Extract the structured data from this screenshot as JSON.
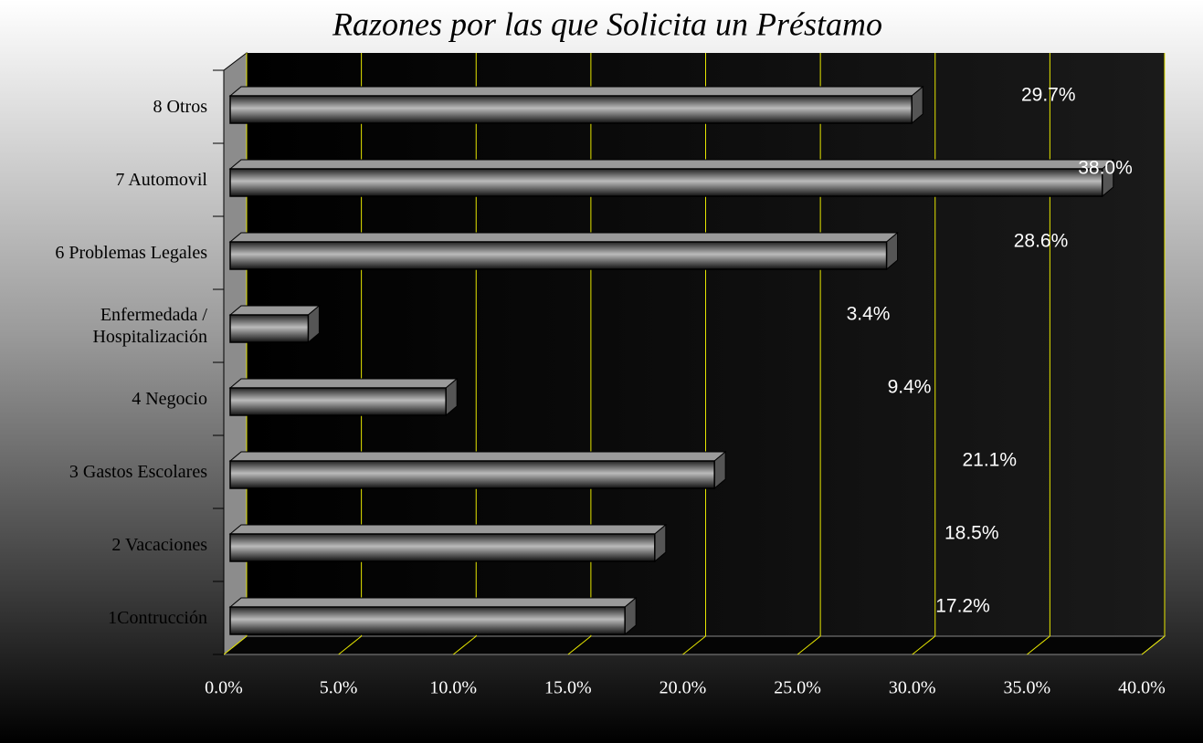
{
  "chart_data": {
    "type": "bar",
    "orientation": "horizontal",
    "title": "Razones por las que Solicita un Préstamo",
    "categories": [
      "1Contrucción",
      "2 Vacaciones",
      "3 Gastos Escolares",
      "4 Negocio",
      "Enfermedada / Hospitalización",
      "6 Problemas Legales",
      "7 Automovil",
      "8 Otros"
    ],
    "values": [
      17.2,
      18.5,
      21.1,
      9.4,
      3.4,
      28.6,
      38.0,
      29.7
    ],
    "value_labels": [
      "17.2%",
      "18.5%",
      "21.1%",
      "9.4%",
      "3.4%",
      "28.6%",
      "38.0%",
      "29.7%"
    ],
    "color": "#8a8a8a",
    "xlim": [
      0,
      40
    ],
    "xticks": [
      {
        "value": 0,
        "label": "0.0%"
      },
      {
        "value": 5,
        "label": "5.0%"
      },
      {
        "value": 10,
        "label": "10.0%"
      },
      {
        "value": 15,
        "label": "15.0%"
      },
      {
        "value": 20,
        "label": "20.0%"
      },
      {
        "value": 25,
        "label": "25.0%"
      },
      {
        "value": 30,
        "label": "30.0%"
      },
      {
        "value": 35,
        "label": "35.0%"
      },
      {
        "value": 40,
        "label": "40.0%"
      }
    ],
    "grid": true
  }
}
